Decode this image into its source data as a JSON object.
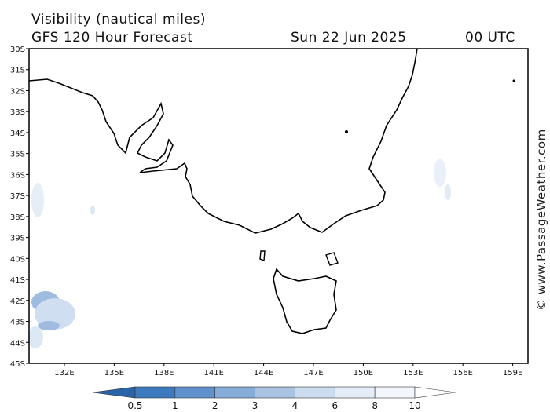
{
  "header": {
    "title": "Visibility (nautical miles)",
    "subtitle": "GFS 120 Hour Forecast",
    "date": "Sun 22 Jun 2025",
    "time": "00 UTC"
  },
  "map": {
    "lat_labels": [
      "30S",
      "31S",
      "32S",
      "33S",
      "34S",
      "35S",
      "36S",
      "37S",
      "38S",
      "39S",
      "40S",
      "41S",
      "42S",
      "43S",
      "44S",
      "45S"
    ],
    "lon_labels": [
      "132E",
      "135E",
      "138E",
      "141E",
      "144E",
      "147E",
      "150E",
      "153E",
      "156E",
      "159E"
    ]
  },
  "colorbar": {
    "labels": [
      "0.5",
      "1",
      "2",
      "3",
      "4",
      "6",
      "8",
      "10"
    ]
  },
  "credit": "© www.PassageWeather.com"
}
